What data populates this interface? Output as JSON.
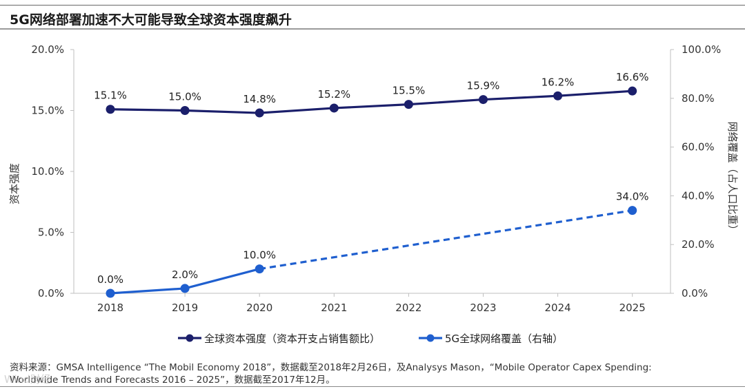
{
  "title": "5G网络部署加速不大可能导致全球资本强度飙升",
  "chart_data": {
    "type": "line",
    "categories": [
      "2018",
      "2019",
      "2020",
      "2021",
      "2022",
      "2023",
      "2024",
      "2025"
    ],
    "y_left": {
      "label": "资本强度",
      "range": [
        0,
        20
      ],
      "ticks": [
        0,
        5,
        10,
        15,
        20
      ],
      "tick_labels": [
        "0.0%",
        "5.0%",
        "10.0%",
        "15.0%",
        "20.0%"
      ]
    },
    "y_right": {
      "label": "网络覆盖（占人口比重）",
      "range": [
        0,
        100
      ],
      "ticks": [
        0,
        20,
        40,
        60,
        80,
        100
      ],
      "tick_labels": [
        "0.0%",
        "20.0%",
        "40.0%",
        "60.0%",
        "80.0%",
        "100.0%"
      ]
    },
    "series": [
      {
        "name": "全球资本强度（资本开支占销售额比）",
        "axis": "left",
        "color": "#1b1f6b",
        "values": [
          15.1,
          15.0,
          14.8,
          15.2,
          15.5,
          15.9,
          16.2,
          16.6
        ],
        "labels": [
          "15.1%",
          "15.0%",
          "14.8%",
          "15.2%",
          "15.5%",
          "15.9%",
          "16.2%",
          "16.6%"
        ]
      },
      {
        "name": "5G全球网络覆盖（右轴）",
        "axis": "right",
        "color": "#1f5fcf",
        "values": [
          0.0,
          2.0,
          10.0,
          null,
          null,
          null,
          null,
          34.0
        ],
        "labels": [
          "0.0%",
          "2.0%",
          "10.0%",
          "",
          "",
          "",
          "",
          "34.0%"
        ],
        "dashed_after_index": 2
      }
    ],
    "legend_position": "bottom"
  },
  "source": {
    "line1": "资料来源：GMSA Intelligence “The Mobil Economy 2018”，数据截至2018年2月26日，及Analysys Mason，“Mobile Operator Capex Spending:",
    "line2": "Worldwide Trends and Forecasts 2016 – 2025”，数据截至2017年12月。"
  },
  "watermark": "Wind财经"
}
